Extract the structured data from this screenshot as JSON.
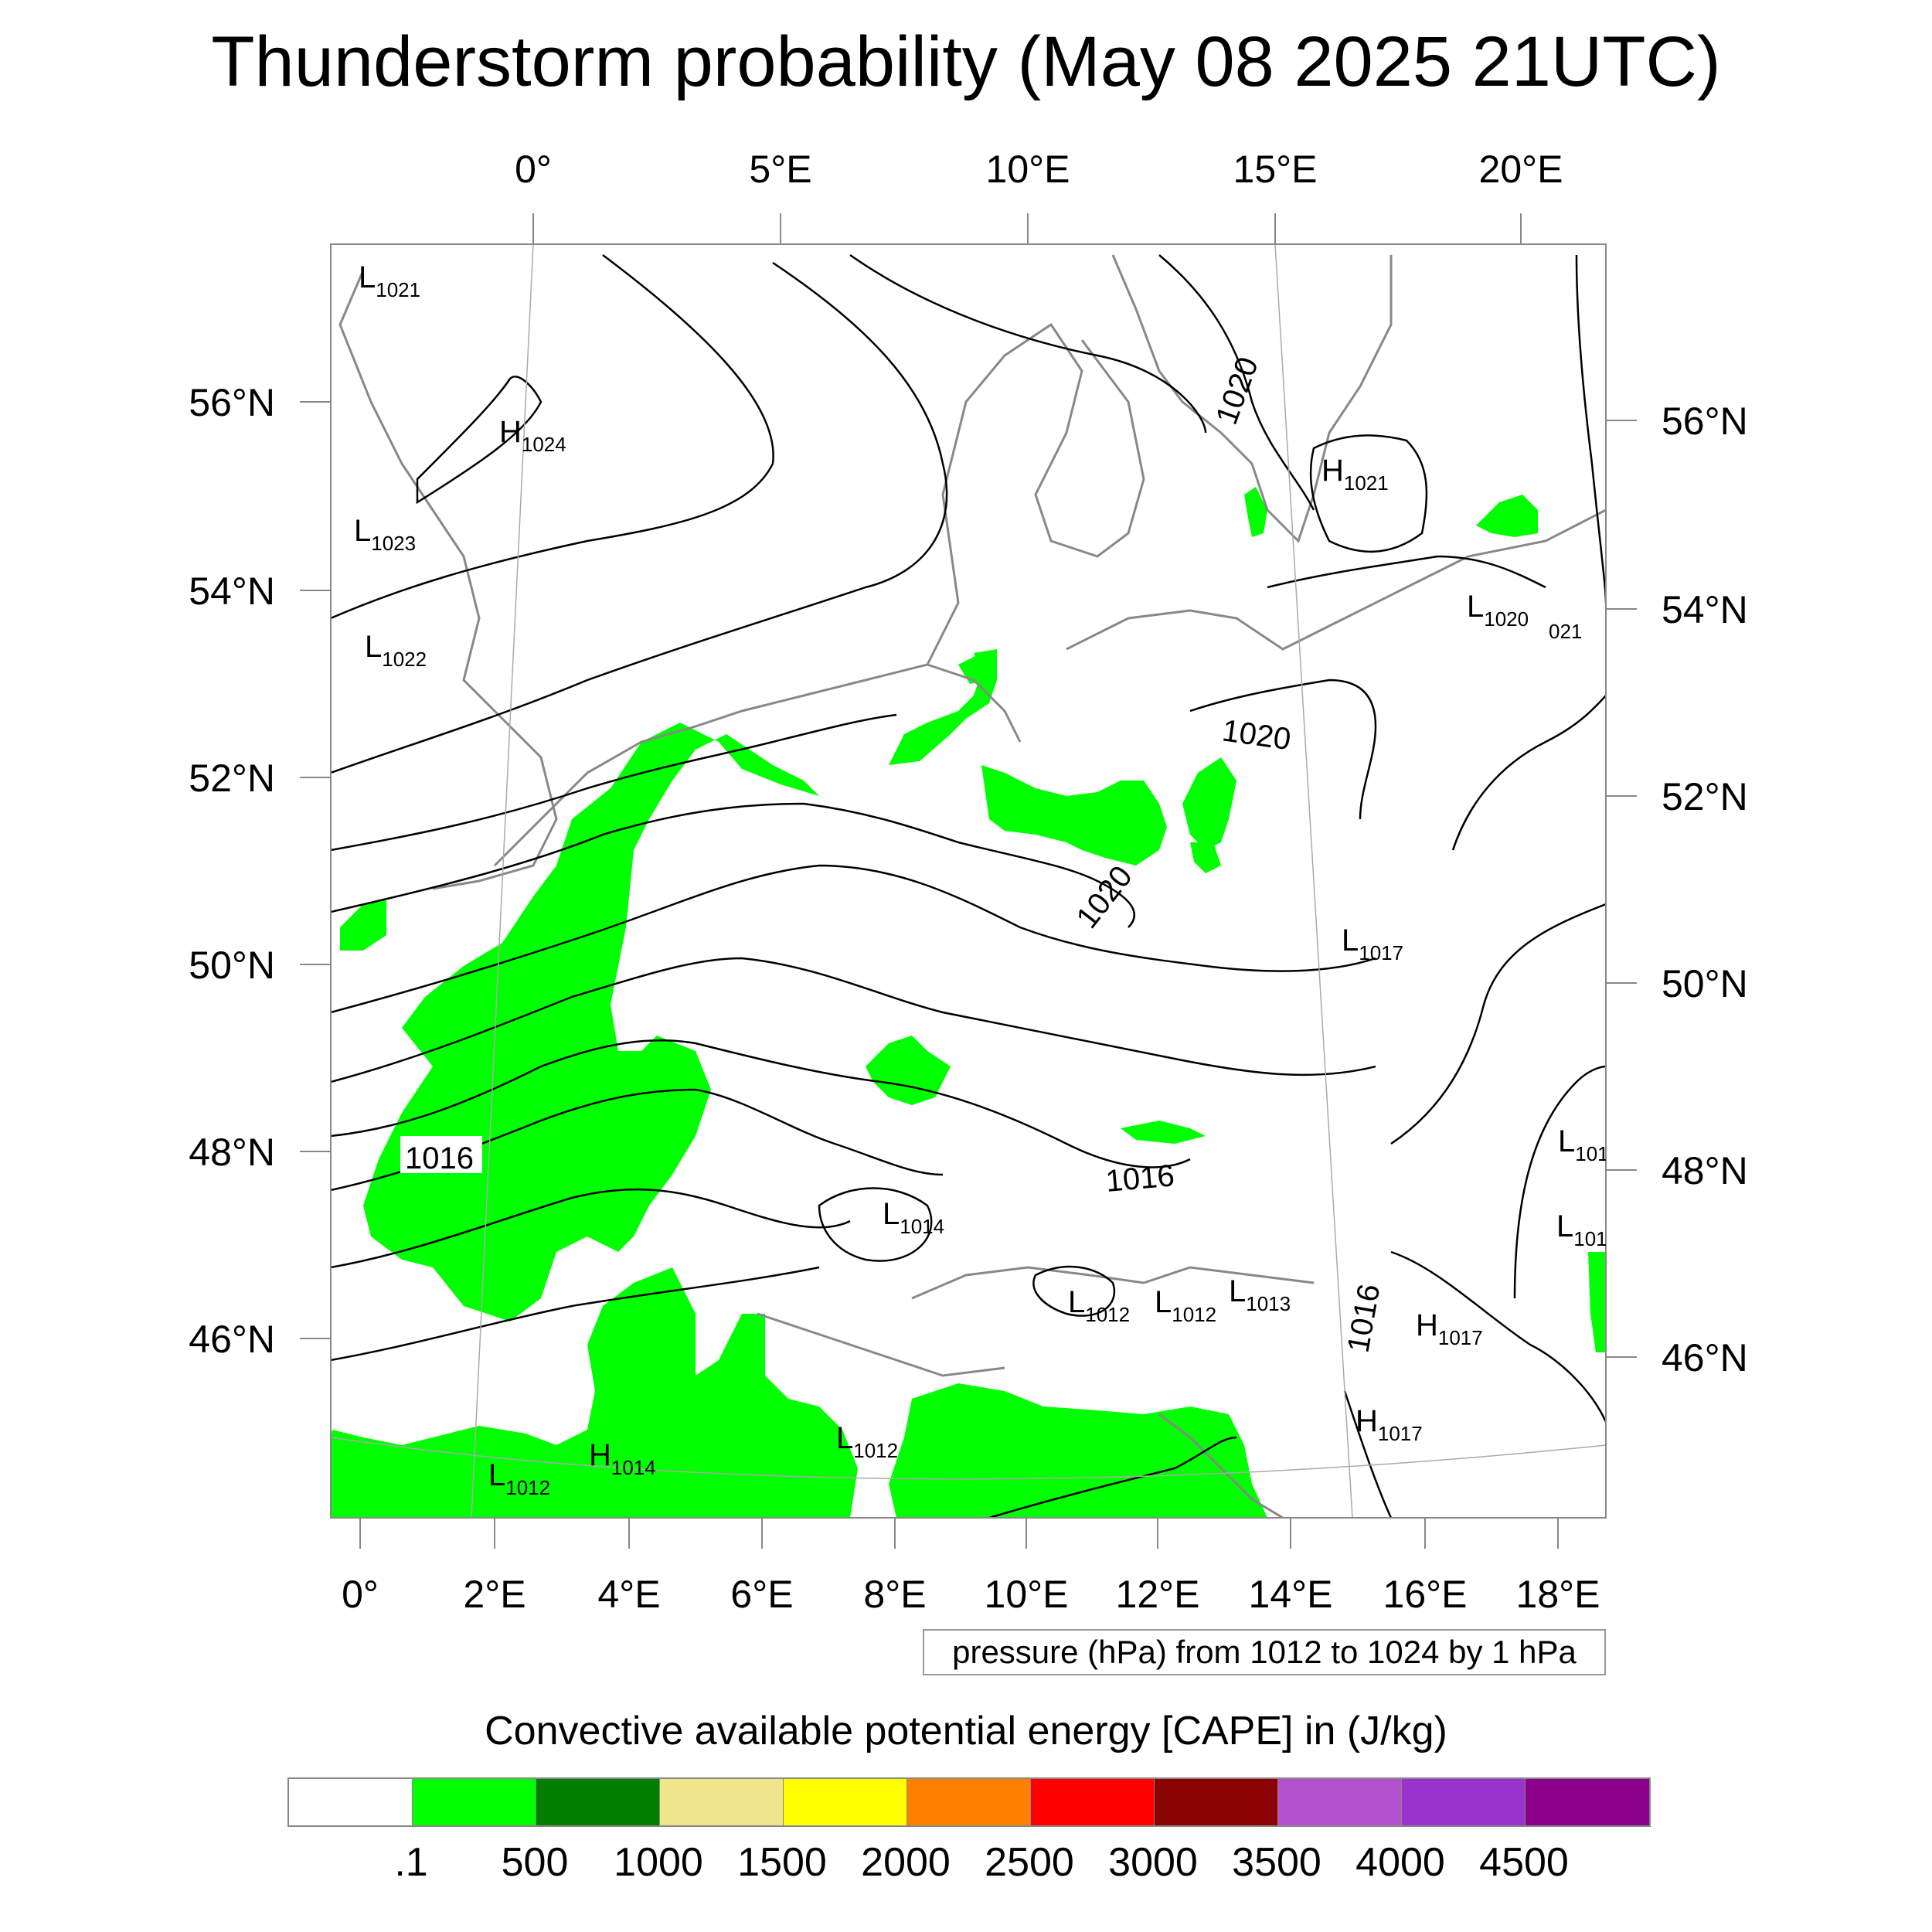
{
  "title": "Thunderstorm probability (May 08 2025 21UTC)",
  "top_lon_ticks": [
    "0°",
    "5°E",
    "10°E",
    "15°E",
    "20°E"
  ],
  "bottom_lon_ticks": [
    "0°",
    "2°E",
    "4°E",
    "6°E",
    "8°E",
    "10°E",
    "12°E",
    "14°E",
    "16°E",
    "18°E"
  ],
  "left_lat_ticks": [
    "56°N",
    "54°N",
    "52°N",
    "50°N",
    "48°N",
    "46°N"
  ],
  "right_lat_ticks": [
    "56°N",
    "54°N",
    "52°N",
    "50°N",
    "48°N",
    "46°N"
  ],
  "pressure_centers": [
    {
      "kind": "L",
      "value": "1021"
    },
    {
      "kind": "H",
      "value": "1024"
    },
    {
      "kind": "L",
      "value": "1023"
    },
    {
      "kind": "L",
      "value": "1022"
    },
    {
      "kind": "H",
      "value": "1021"
    },
    {
      "kind": "L",
      "value": "1020"
    },
    {
      "kind": "L",
      "value": "1017"
    },
    {
      "kind": "L",
      "value": "1014"
    },
    {
      "kind": "L",
      "value": "1012"
    },
    {
      "kind": "L",
      "value": "1012"
    },
    {
      "kind": "L",
      "value": "1013"
    },
    {
      "kind": "H",
      "value": "1017"
    },
    {
      "kind": "H",
      "value": "1017"
    },
    {
      "kind": "L",
      "value": "1012"
    },
    {
      "kind": "H",
      "value": "1014"
    },
    {
      "kind": "L",
      "value": "1012"
    },
    {
      "kind": "L",
      "value": "101"
    },
    {
      "kind": "L",
      "value": "101"
    }
  ],
  "isobar_labels": [
    "1020",
    "1020",
    "1020",
    "1016",
    "1016",
    "1016",
    "021"
  ],
  "note": "pressure (hPa) from 1012 to 1024 by 1 hPa",
  "colorbar": {
    "title": "Convective available potential energy [CAPE] in (J/kg)",
    "colors": [
      "#ffffff",
      "#00ff00",
      "#007f00",
      "#f0e68c",
      "#ffff00",
      "#ff8000",
      "#ff0000",
      "#8b0000",
      "#b452cd",
      "#9a32cd",
      "#8b008b"
    ],
    "labels": [
      ".1",
      "500",
      "1000",
      "1500",
      "2000",
      "2500",
      "3000",
      "3500",
      "4000",
      "4500"
    ]
  }
}
